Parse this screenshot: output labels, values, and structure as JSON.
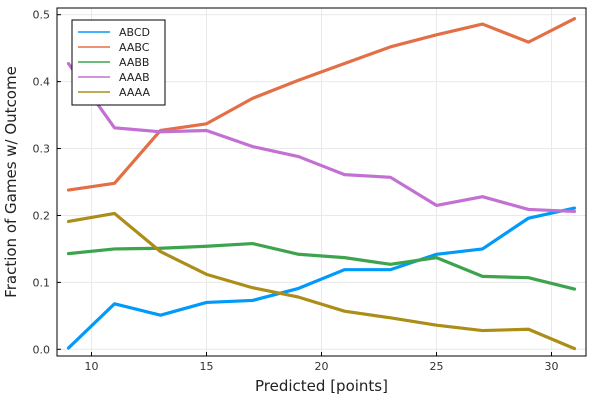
{
  "chart_data": {
    "type": "line",
    "title": "",
    "xlabel": "Predicted [points]",
    "ylabel": "Fraction of Games w/ Outcome",
    "xlim": [
      8.5,
      31.5
    ],
    "ylim": [
      -0.01,
      0.51
    ],
    "xticks": [
      10,
      15,
      20,
      25,
      30
    ],
    "yticks": [
      0.0,
      0.1,
      0.2,
      0.3,
      0.4,
      0.5
    ],
    "xtick_labels": [
      "10",
      "15",
      "20",
      "25",
      "30"
    ],
    "ytick_labels": [
      "0.0",
      "0.1",
      "0.2",
      "0.3",
      "0.4",
      "0.5"
    ],
    "grid": true,
    "legend_position": "top-left",
    "x": [
      9,
      11,
      13,
      15,
      17,
      19,
      21,
      23,
      25,
      27,
      29,
      31
    ],
    "series": [
      {
        "name": "ABCD",
        "color": "#009AFA",
        "values": [
          0.002,
          0.068,
          0.051,
          0.07,
          0.073,
          0.091,
          0.119,
          0.119,
          0.142,
          0.15,
          0.196,
          0.211
        ]
      },
      {
        "name": "AABC",
        "color": "#E26F46",
        "values": [
          0.238,
          0.248,
          0.327,
          0.337,
          0.375,
          0.402,
          0.427,
          0.452,
          0.47,
          0.486,
          0.459,
          0.494
        ]
      },
      {
        "name": "AABB",
        "color": "#3DA44D",
        "values": [
          0.143,
          0.15,
          0.151,
          0.154,
          0.158,
          0.142,
          0.137,
          0.127,
          0.137,
          0.109,
          0.107,
          0.09
        ]
      },
      {
        "name": "AAAB",
        "color": "#C271D2",
        "values": [
          0.427,
          0.331,
          0.325,
          0.327,
          0.303,
          0.288,
          0.261,
          0.257,
          0.215,
          0.228,
          0.209,
          0.206
        ]
      },
      {
        "name": "AAAA",
        "color": "#AC8D18",
        "values": [
          0.191,
          0.203,
          0.146,
          0.112,
          0.092,
          0.078,
          0.057,
          0.047,
          0.036,
          0.028,
          0.03,
          0.001
        ]
      }
    ]
  }
}
